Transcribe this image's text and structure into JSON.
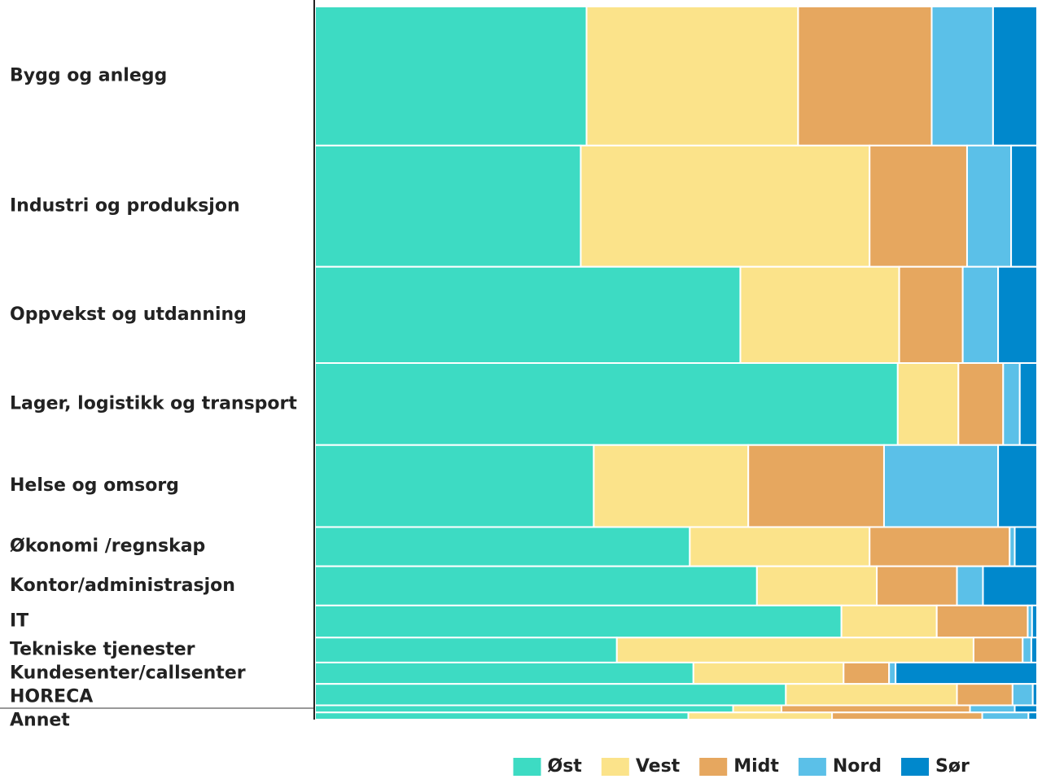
{
  "chart_data": {
    "type": "marimekko",
    "categories": [
      "Bygg og anlegg",
      "Industri og produksjon",
      "Oppvekst og utdanning",
      "Lager, logistikk og transport",
      "Helse og omsorg",
      "Økonomi /regnskap",
      "Kontor/administrasjon",
      "IT",
      "Tekniske tjenester",
      "Kundesenter/callsenter",
      "HORECA",
      null,
      "Annet"
    ],
    "row_shares": [
      19.5,
      17,
      13.5,
      11.5,
      11.5,
      5.5,
      5.5,
      4.5,
      3.5,
      3,
      3,
      1,
      1
    ],
    "series": [
      {
        "name": "Øst",
        "color": "#3ddbc3",
        "values": [
          37.6,
          36.8,
          58.9,
          80.7,
          38.6,
          51.9,
          61.2,
          72.9,
          41.8,
          52.4,
          65.2,
          57.9,
          51.7
        ]
      },
      {
        "name": "Vest",
        "color": "#fbe38a",
        "values": [
          29.3,
          40.0,
          22.0,
          8.4,
          21.4,
          24.9,
          16.6,
          13.2,
          49.4,
          20.8,
          23.7,
          6.7,
          19.9
        ]
      },
      {
        "name": "Midt",
        "color": "#e6a75f",
        "values": [
          18.5,
          13.5,
          8.8,
          6.2,
          18.8,
          19.4,
          11.1,
          12.6,
          6.8,
          6.3,
          7.7,
          26.1,
          20.8
        ]
      },
      {
        "name": "Nord",
        "color": "#5bc0e8",
        "values": [
          8.5,
          6.1,
          4.9,
          2.3,
          15.8,
          0.7,
          3.6,
          0.6,
          1.2,
          0.9,
          2.8,
          6.2,
          6.4
        ]
      },
      {
        "name": "Sør",
        "color": "#0088cc",
        "values": [
          6.1,
          3.6,
          5.4,
          2.4,
          5.4,
          3.1,
          7.5,
          0.7,
          0.8,
          19.6,
          0.6,
          3.1,
          1.2
        ]
      }
    ],
    "legend": "bottom"
  }
}
